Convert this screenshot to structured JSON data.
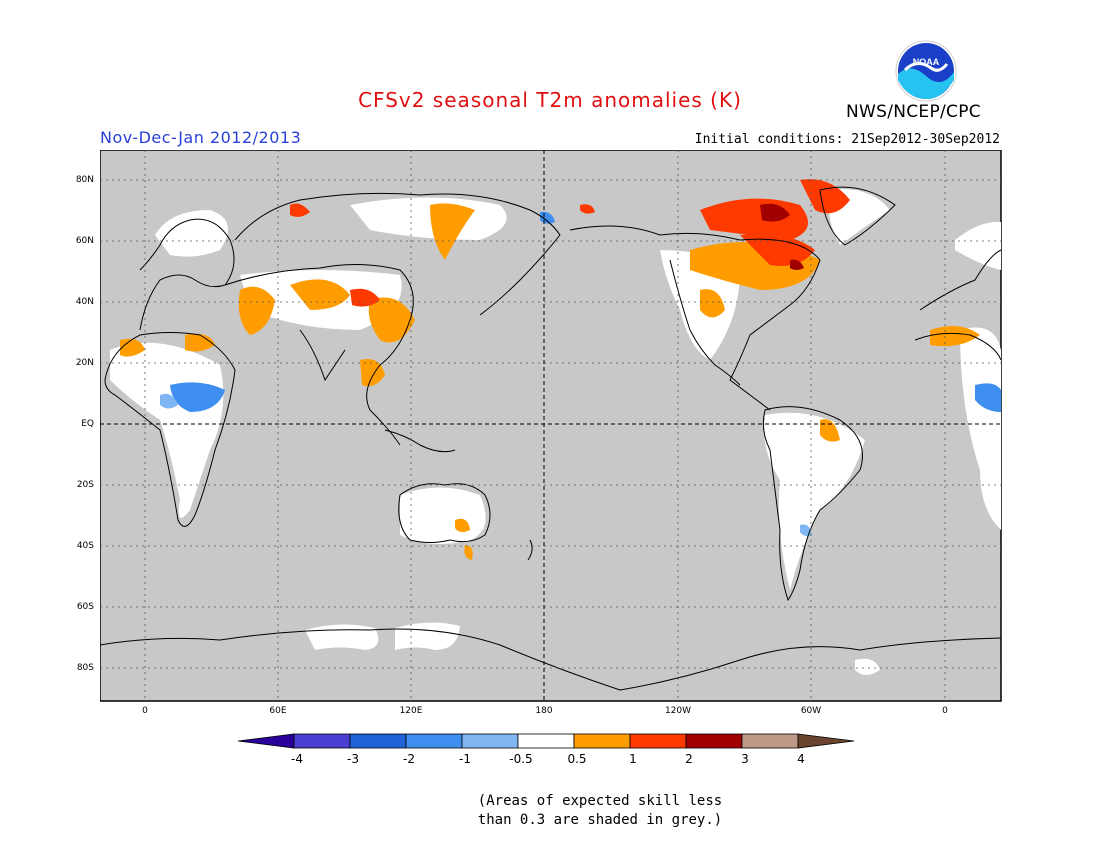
{
  "title": "CFSv2 seasonal T2m anomalies (K)",
  "season": "Nov-Dec-Jan 2012/2013",
  "initial_conditions": "Initial conditions: 21Sep2012-30Sep2012",
  "agency": "NWS/NCEP/CPC",
  "logo_text": "NOAA",
  "latitude_labels": [
    "80N",
    "60N",
    "40N",
    "20N",
    "EQ",
    "20S",
    "40S",
    "60S",
    "80S"
  ],
  "longitude_labels": [
    "0",
    "60E",
    "120E",
    "180",
    "120W",
    "60W",
    "0"
  ],
  "colorbar": {
    "labels": [
      "-4",
      "-3",
      "-2",
      "-1",
      "-0.5",
      "0.5",
      "1",
      "2",
      "3",
      "4"
    ],
    "colors": [
      "#2a009a",
      "#4a3fd0",
      "#1f63d6",
      "#3e8ff0",
      "#7fb6f2",
      "#ffffff",
      "#ff9d00",
      "#ff3a00",
      "#a00000",
      "#c09888",
      "#6b4430"
    ]
  },
  "colors": {
    "ocean_grey": "#c8c8c8",
    "land_white": "#ffffff",
    "no_skill_grey": "#c8c8c8"
  },
  "note": {
    "line1": "(Areas of expected skill less",
    "line2": "than 0.3 are shaded in grey.)"
  }
}
